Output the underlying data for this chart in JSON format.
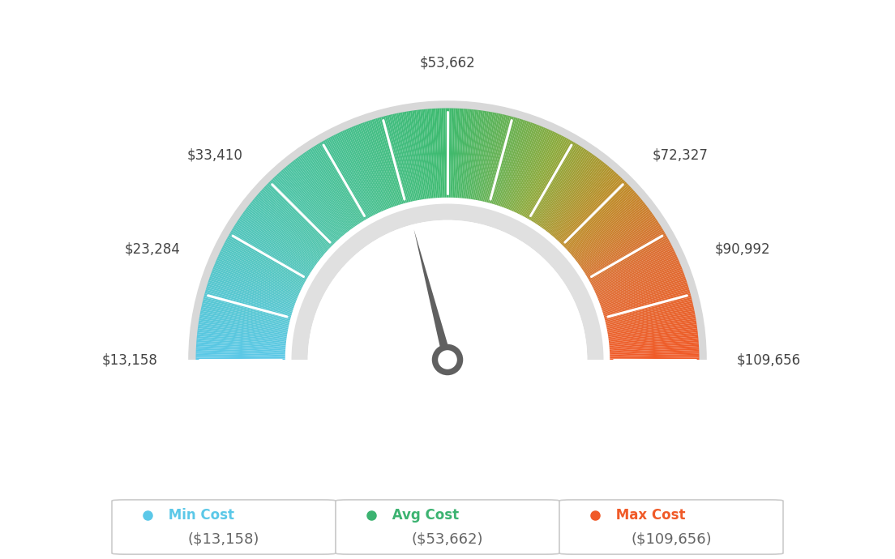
{
  "min_val": 13158,
  "max_val": 109656,
  "avg_val": 53662,
  "label_texts": [
    "$13,158",
    "$23,284",
    "$33,410",
    "$53,662",
    "$72,327",
    "$90,992",
    "$109,656"
  ],
  "label_angles": [
    180,
    157.5,
    135,
    90,
    45,
    22.5,
    0
  ],
  "min_cost_label": "Min Cost",
  "avg_cost_label": "Avg Cost",
  "max_cost_label": "Max Cost",
  "min_cost_value": "($13,158)",
  "avg_cost_value": "($53,662)",
  "max_cost_value": "($109,656)",
  "min_color": "#5bc8e8",
  "avg_color": "#3cb371",
  "max_color": "#f05a28",
  "background_color": "#ffffff",
  "needle_color": "#606060",
  "outer_border_color": "#d8d8d8",
  "inner_gap_color": "#e0e0e0",
  "color_stops": [
    [
      0.0,
      [
        91,
        200,
        232
      ]
    ],
    [
      0.25,
      [
        78,
        196,
        168
      ]
    ],
    [
      0.5,
      [
        61,
        186,
        110
      ]
    ],
    [
      0.65,
      [
        140,
        170,
        60
      ]
    ],
    [
      0.75,
      [
        190,
        140,
        40
      ]
    ],
    [
      0.85,
      [
        220,
        110,
        50
      ]
    ],
    [
      1.0,
      [
        240,
        90,
        40
      ]
    ]
  ]
}
